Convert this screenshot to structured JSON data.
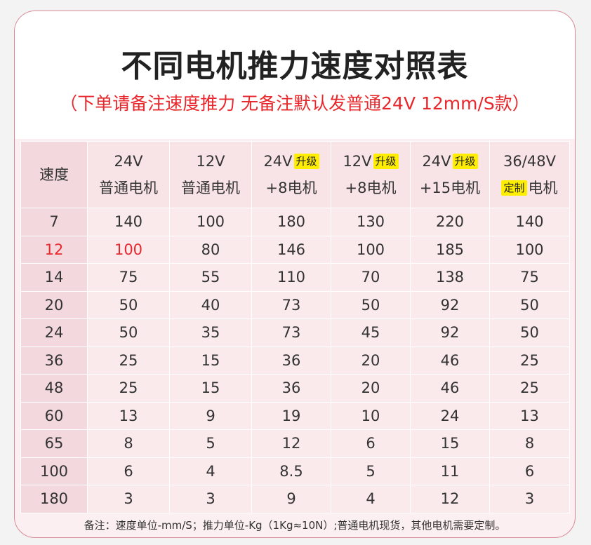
{
  "title": "不同电机推力速度对照表",
  "subtitle": "（下单请备注速度推力 无备注默认发普通24V 12mm/S款）",
  "header": {
    "speed": "速度",
    "cols": [
      {
        "line1": "24V",
        "badge": "",
        "line2": "普通电机",
        "badge2": ""
      },
      {
        "line1": "12V",
        "badge": "",
        "line2": "普通电机",
        "badge2": ""
      },
      {
        "line1": "24V",
        "badge": "升级",
        "line2": "+8电机",
        "badge2": ""
      },
      {
        "line1": "12V",
        "badge": "升级",
        "line2": "+8电机",
        "badge2": ""
      },
      {
        "line1": "24V",
        "badge": "升级",
        "line2": "+15电机",
        "badge2": ""
      },
      {
        "line1": "36/48V",
        "badge": "",
        "line2": "电机",
        "badge2": "定制"
      }
    ]
  },
  "rows": [
    [
      "7",
      "140",
      "100",
      "180",
      "130",
      "220",
      "140"
    ],
    [
      "12",
      "100",
      "80",
      "146",
      "100",
      "185",
      "100"
    ],
    [
      "14",
      "75",
      "55",
      "110",
      "70",
      "138",
      "75"
    ],
    [
      "20",
      "50",
      "40",
      "73",
      "50",
      "92",
      "50"
    ],
    [
      "24",
      "50",
      "35",
      "73",
      "45",
      "92",
      "50"
    ],
    [
      "36",
      "25",
      "15",
      "36",
      "20",
      "46",
      "25"
    ],
    [
      "48",
      "25",
      "15",
      "36",
      "20",
      "46",
      "25"
    ],
    [
      "60",
      "13",
      "9",
      "19",
      "10",
      "24",
      "13"
    ],
    [
      "65",
      "8",
      "5",
      "12",
      "6",
      "15",
      "8"
    ],
    [
      "100",
      "6",
      "4",
      "8.5",
      "5",
      "11",
      "6"
    ],
    [
      "180",
      "3",
      "3",
      "9",
      "4",
      "12",
      "3"
    ]
  ],
  "highlight_row": 1,
  "footer": "备注：速度单位-mm/S；推力单位-Kg（1Kg≈10N）;普通电机现货，其他电机需要定制。",
  "colors": {
    "accent": "#e8272c",
    "badge": "#ffee00",
    "card": "#fbeff1",
    "border": "#d98a95"
  }
}
